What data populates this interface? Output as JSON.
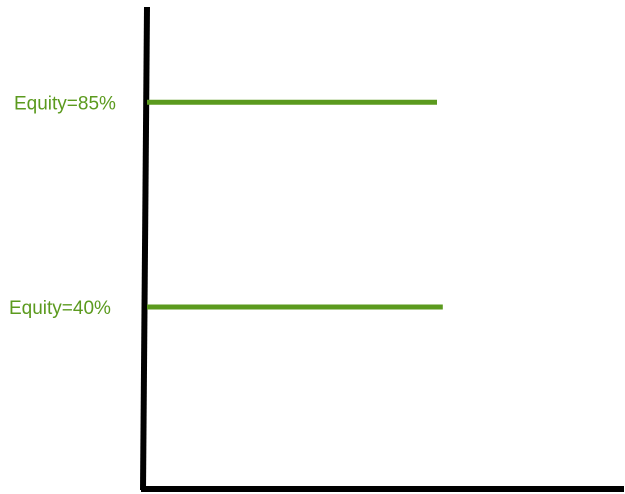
{
  "colors": {
    "axis": "#000000",
    "series": "#5b9a1e",
    "label": "#5b9a1e"
  },
  "chart_data": {
    "type": "line",
    "title": "",
    "xlabel": "",
    "ylabel": "",
    "grid": false,
    "legend": "none",
    "ylim": [
      0,
      100
    ],
    "series": [
      {
        "label": "Equity=85%",
        "y": 85,
        "x_extent": [
          0,
          1.0
        ]
      },
      {
        "label": "Equity=40%",
        "y": 40,
        "x_extent": [
          0,
          1.02
        ]
      }
    ]
  }
}
